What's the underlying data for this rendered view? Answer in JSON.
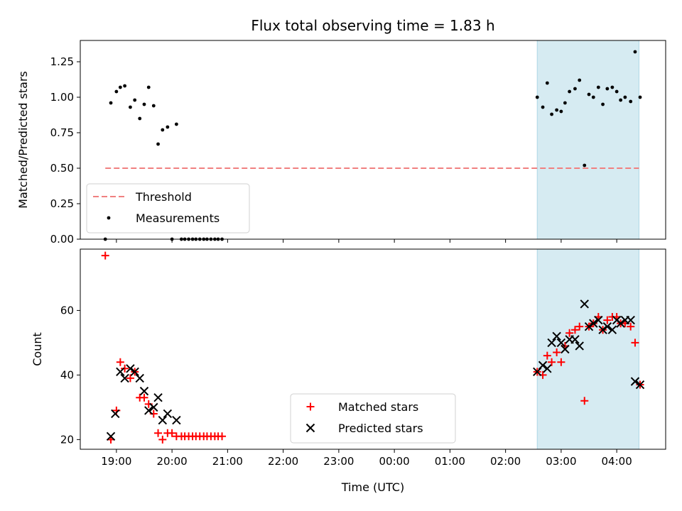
{
  "chart_data": {
    "title": "Flux total observing time = 1.83 h",
    "xlabel": "Time (UTC)",
    "x_tick_labels": [
      "19:00",
      "20:00",
      "21:00",
      "22:00",
      "23:00",
      "00:00",
      "01:00",
      "02:00",
      "03:00",
      "04:00"
    ],
    "x_tick_hours": [
      19,
      20,
      21,
      22,
      23,
      24,
      25,
      26,
      27,
      28
    ],
    "xlim_hours": [
      18.35,
      28.88
    ],
    "observing_window_hours": [
      26.57,
      28.4
    ],
    "window_color": "#add8e6",
    "panels": [
      {
        "type": "scatter",
        "ylabel": "Matched/Predicted stars",
        "ylim": [
          0,
          1.4
        ],
        "y_ticks": [
          0,
          0.25,
          0.5,
          0.75,
          1.0,
          1.25
        ],
        "y_tick_labels": [
          "0.00",
          "0.25",
          "0.50",
          "0.75",
          "1.00",
          "1.25"
        ],
        "threshold": {
          "name": "Threshold",
          "value": 0.5,
          "x_range_hours": [
            18.8,
            28.4
          ],
          "color": "#f08080"
        },
        "legend": {
          "location": "lower-left",
          "entries": [
            "Threshold",
            "Measurements"
          ]
        },
        "series": [
          {
            "name": "Measurements",
            "color": "#000000",
            "points": [
              [
                18.8,
                0.0
              ],
              [
                18.9,
                0.96
              ],
              [
                19.0,
                1.04
              ],
              [
                19.07,
                1.07
              ],
              [
                19.15,
                1.08
              ],
              [
                19.25,
                0.93
              ],
              [
                19.33,
                0.98
              ],
              [
                19.42,
                0.85
              ],
              [
                19.5,
                0.95
              ],
              [
                19.58,
                1.07
              ],
              [
                19.67,
                0.94
              ],
              [
                19.75,
                0.67
              ],
              [
                19.83,
                0.77
              ],
              [
                19.92,
                0.79
              ],
              [
                20.0,
                0.0
              ],
              [
                20.08,
                0.81
              ],
              [
                20.17,
                0.0
              ],
              [
                20.23,
                0.0
              ],
              [
                20.3,
                0.0
              ],
              [
                20.37,
                0.0
              ],
              [
                20.43,
                0.0
              ],
              [
                20.5,
                0.0
              ],
              [
                20.57,
                0.0
              ],
              [
                20.63,
                0.0
              ],
              [
                20.7,
                0.0
              ],
              [
                20.77,
                0.0
              ],
              [
                20.83,
                0.0
              ],
              [
                20.9,
                0.0
              ],
              [
                26.57,
                1.0
              ],
              [
                26.67,
                0.93
              ],
              [
                26.75,
                1.1
              ],
              [
                26.83,
                0.88
              ],
              [
                26.92,
                0.91
              ],
              [
                27.0,
                0.9
              ],
              [
                27.07,
                0.96
              ],
              [
                27.15,
                1.04
              ],
              [
                27.25,
                1.06
              ],
              [
                27.33,
                1.12
              ],
              [
                27.42,
                0.52
              ],
              [
                27.5,
                1.02
              ],
              [
                27.58,
                1.0
              ],
              [
                27.67,
                1.07
              ],
              [
                27.75,
                0.95
              ],
              [
                27.83,
                1.06
              ],
              [
                27.92,
                1.07
              ],
              [
                28.0,
                1.04
              ],
              [
                28.07,
                0.98
              ],
              [
                28.15,
                1.0
              ],
              [
                28.25,
                0.97
              ],
              [
                28.33,
                1.32
              ],
              [
                28.42,
                1.0
              ]
            ]
          }
        ]
      },
      {
        "type": "scatter",
        "ylabel": "Count",
        "ylim": [
          17,
          79
        ],
        "y_ticks": [
          20,
          40,
          60
        ],
        "y_tick_labels": [
          "20",
          "40",
          "60"
        ],
        "legend": {
          "location": "lower-center",
          "entries": [
            "Matched stars",
            "Predicted stars"
          ]
        },
        "series": [
          {
            "name": "Matched stars",
            "marker": "plus",
            "color": "#ff0000",
            "points": [
              [
                18.8,
                77
              ],
              [
                18.9,
                20
              ],
              [
                19.0,
                29
              ],
              [
                19.07,
                44
              ],
              [
                19.15,
                42
              ],
              [
                19.25,
                39
              ],
              [
                19.33,
                41
              ],
              [
                19.42,
                33
              ],
              [
                19.5,
                33
              ],
              [
                19.58,
                31
              ],
              [
                19.67,
                28
              ],
              [
                19.75,
                22
              ],
              [
                19.83,
                20
              ],
              [
                19.92,
                22
              ],
              [
                20.0,
                22
              ],
              [
                20.08,
                21
              ],
              [
                20.17,
                21
              ],
              [
                20.23,
                21
              ],
              [
                20.3,
                21
              ],
              [
                20.37,
                21
              ],
              [
                20.43,
                21
              ],
              [
                20.5,
                21
              ],
              [
                20.57,
                21
              ],
              [
                20.63,
                21
              ],
              [
                20.7,
                21
              ],
              [
                20.77,
                21
              ],
              [
                20.83,
                21
              ],
              [
                20.9,
                21
              ],
              [
                26.57,
                41
              ],
              [
                26.67,
                40
              ],
              [
                26.75,
                46
              ],
              [
                26.83,
                44
              ],
              [
                26.92,
                47
              ],
              [
                27.0,
                44
              ],
              [
                27.07,
                49
              ],
              [
                27.15,
                53
              ],
              [
                27.25,
                54
              ],
              [
                27.33,
                55
              ],
              [
                27.42,
                32
              ],
              [
                27.5,
                55
              ],
              [
                27.58,
                56
              ],
              [
                27.67,
                58
              ],
              [
                27.75,
                54
              ],
              [
                27.83,
                57
              ],
              [
                27.92,
                58
              ],
              [
                28.0,
                58
              ],
              [
                28.07,
                56
              ],
              [
                28.15,
                56
              ],
              [
                28.25,
                55
              ],
              [
                28.33,
                50
              ],
              [
                28.42,
                37
              ]
            ]
          },
          {
            "name": "Predicted stars",
            "marker": "x",
            "color": "#000000",
            "points": [
              [
                18.9,
                21
              ],
              [
                18.98,
                28
              ],
              [
                19.07,
                41
              ],
              [
                19.15,
                39
              ],
              [
                19.25,
                42
              ],
              [
                19.33,
                41
              ],
              [
                19.42,
                39
              ],
              [
                19.5,
                35
              ],
              [
                19.58,
                29
              ],
              [
                19.67,
                30
              ],
              [
                19.75,
                33
              ],
              [
                19.83,
                26
              ],
              [
                19.92,
                28
              ],
              [
                20.08,
                26
              ],
              [
                26.57,
                41
              ],
              [
                26.67,
                43
              ],
              [
                26.75,
                42
              ],
              [
                26.83,
                50
              ],
              [
                26.92,
                52
              ],
              [
                27.0,
                50
              ],
              [
                27.07,
                48
              ],
              [
                27.15,
                51
              ],
              [
                27.25,
                51
              ],
              [
                27.33,
                49
              ],
              [
                27.42,
                62
              ],
              [
                27.5,
                55
              ],
              [
                27.58,
                56
              ],
              [
                27.67,
                57
              ],
              [
                27.75,
                54
              ],
              [
                27.83,
                55
              ],
              [
                27.92,
                54
              ],
              [
                28.0,
                57
              ],
              [
                28.07,
                56
              ],
              [
                28.15,
                57
              ],
              [
                28.25,
                57
              ],
              [
                28.33,
                38
              ],
              [
                28.42,
                37
              ]
            ]
          }
        ]
      }
    ]
  }
}
